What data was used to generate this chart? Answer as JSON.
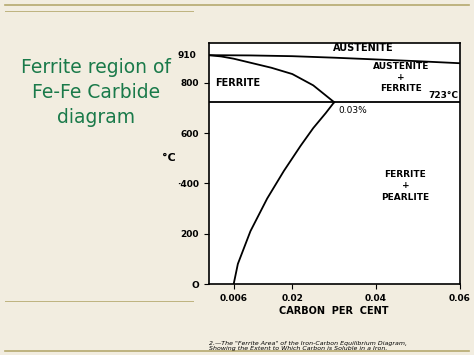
{
  "title_left": "Ferrite region of\nFe-Fe Carbide\ndiagram",
  "title_left_color": "#1a7a4a",
  "bg_color": "#f2ede0",
  "diagram_bg": "#ffffff",
  "xlabel": "CARBON  PER  CENT",
  "ylabel": "°C",
  "xlim": [
    0,
    0.06
  ],
  "ylim": [
    0,
    960
  ],
  "xticks": [
    0.006,
    0.02,
    0.04,
    0.06
  ],
  "xtick_labels": [
    "0.006",
    "0.02",
    "0.04",
    "0.06"
  ],
  "yticks": [
    0,
    200,
    400,
    600,
    800
  ],
  "ytick_labels": [
    "O",
    "200",
    "·400",
    "600",
    "800"
  ],
  "temp_910": 910,
  "temp_723": 723,
  "carbon_003": 0.03,
  "caption": "2.—The \"Ferrite Area\" of the Iron-Carbon Equilibrium Diagram,\nShowing the Extent to Which Carbon is Soluble in a Iron.",
  "region_austenite": "AUSTENITE",
  "region_austenite_ferrite": "AUSTENITE\n+\nFERRITE",
  "region_ferrite": "FERRITE",
  "region_ferrite_pearlite": "FERRITE\n+\nPEARLITE",
  "label_723": "723°C",
  "label_003": "0.03%",
  "label_910": "910"
}
